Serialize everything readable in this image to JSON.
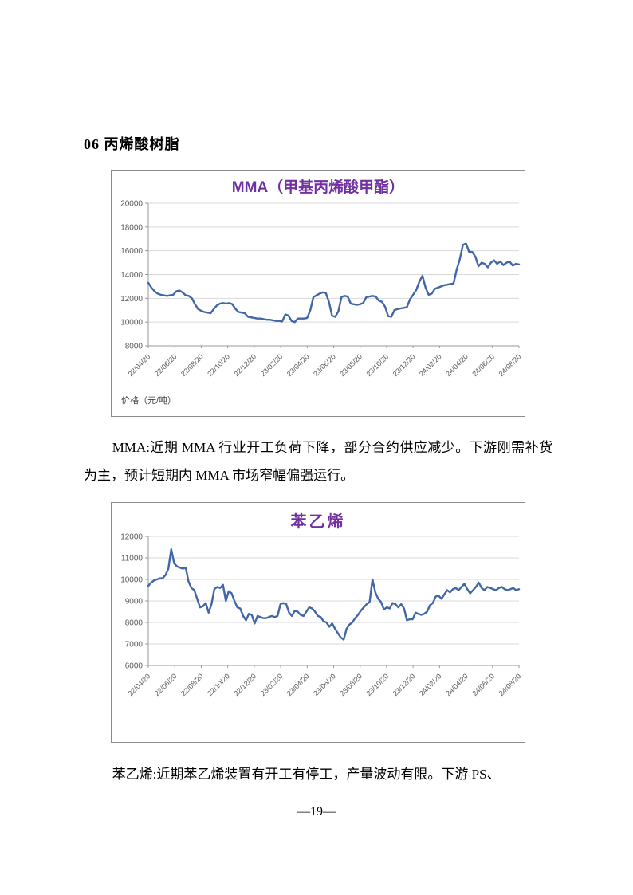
{
  "page": {
    "heading": "06 丙烯酸树脂",
    "paragraph_mma": "MMA:近期 MMA 行业开工负荷下降，部分合约供应减少。下游刚需补货为主，预计短期内 MMA 市场窄幅偏强运行。",
    "paragraph_styrene": "苯乙烯:近期苯乙烯装置有开工有停工，产量波动有限。下游 PS、",
    "page_number": "—19—"
  },
  "colors": {
    "line": "#4166a8",
    "title": "#7030a0",
    "grid": "#d9d9d9",
    "axis": "#9a9a9a",
    "tick_label": "#595959",
    "border": "#8c8c8c"
  },
  "chart_data": [
    {
      "type": "line",
      "title": "MMA（甲基丙烯酸甲酯）",
      "ylabel": "价格（元/吨）",
      "xlabel": "",
      "ylim": [
        8000,
        20000
      ],
      "ytick_step": 2000,
      "grid": true,
      "legend_position": "none",
      "x_ticklabels": [
        "22/04/20",
        "22/06/20",
        "22/08/20",
        "22/10/20",
        "22/12/20",
        "23/02/20",
        "23/04/20",
        "23/06/20",
        "23/08/20",
        "23/10/20",
        "23/12/20",
        "24/02/20",
        "24/04/20",
        "24/06/20",
        "24/08/20"
      ],
      "values": [
        13300,
        12900,
        12600,
        12400,
        12300,
        12250,
        12200,
        12250,
        12300,
        12600,
        12650,
        12500,
        12250,
        12200,
        12000,
        11500,
        11100,
        10950,
        10850,
        10800,
        10750,
        11100,
        11400,
        11550,
        11600,
        11550,
        11600,
        11500,
        11100,
        10850,
        10800,
        10750,
        10450,
        10400,
        10350,
        10300,
        10300,
        10250,
        10200,
        10200,
        10150,
        10100,
        10100,
        10050,
        10650,
        10550,
        10100,
        10000,
        10300,
        10300,
        10300,
        10350,
        11000,
        12100,
        12250,
        12400,
        12500,
        12450,
        11700,
        10550,
        10450,
        10900,
        12100,
        12200,
        12150,
        11550,
        11500,
        11450,
        11500,
        11600,
        12100,
        12150,
        12200,
        12150,
        11800,
        11700,
        11300,
        10500,
        10450,
        11000,
        11100,
        11150,
        11200,
        11250,
        11900,
        12300,
        12700,
        13400,
        13900,
        12900,
        12300,
        12400,
        12800,
        12900,
        13000,
        13100,
        13150,
        13200,
        13250,
        14400,
        15300,
        16500,
        16600,
        15900,
        15900,
        15500,
        14700,
        15000,
        14900,
        14600,
        15000,
        15200,
        14900,
        15100,
        14800,
        15000,
        15100,
        14750,
        14900,
        14850
      ]
    },
    {
      "type": "line",
      "title": "苯乙烯",
      "ylabel": "",
      "xlabel": "",
      "ylim": [
        6000,
        12000
      ],
      "ytick_step": 1000,
      "grid": true,
      "legend_position": "none",
      "x_ticklabels": [
        "22/04/20",
        "22/06/20",
        "22/08/20",
        "22/10/20",
        "22/12/20",
        "23/02/20",
        "23/04/20",
        "23/06/20",
        "23/08/20",
        "23/10/20",
        "23/12/20",
        "24/02/20",
        "24/04/20",
        "24/06/20",
        "24/08/20"
      ],
      "values": [
        9700,
        9850,
        9950,
        10000,
        10050,
        10050,
        10200,
        10500,
        11400,
        10750,
        10600,
        10550,
        10500,
        10550,
        9900,
        9600,
        9500,
        9100,
        8700,
        8750,
        8900,
        8450,
        8850,
        9550,
        9650,
        9600,
        9750,
        9000,
        9450,
        9350,
        9000,
        8700,
        8650,
        8300,
        8100,
        8400,
        8350,
        7950,
        8300,
        8250,
        8200,
        8200,
        8250,
        8300,
        8250,
        8300,
        8850,
        8900,
        8850,
        8450,
        8300,
        8550,
        8500,
        8350,
        8300,
        8500,
        8700,
        8650,
        8500,
        8300,
        8250,
        8050,
        8000,
        7800,
        7950,
        7700,
        7500,
        7300,
        7200,
        7700,
        7900,
        8000,
        8200,
        8350,
        8550,
        8700,
        8850,
        8950,
        10000,
        9400,
        9100,
        8950,
        8600,
        8700,
        8650,
        8900,
        8850,
        8700,
        8850,
        8650,
        8100,
        8150,
        8150,
        8450,
        8400,
        8350,
        8400,
        8500,
        8800,
        8900,
        9200,
        9250,
        9100,
        9300,
        9500,
        9400,
        9550,
        9600,
        9500,
        9650,
        9800,
        9550,
        9350,
        9500,
        9650,
        9850,
        9600,
        9500,
        9650,
        9600,
        9550,
        9500,
        9600,
        9650,
        9550,
        9500,
        9550,
        9600,
        9500,
        9550
      ]
    }
  ]
}
